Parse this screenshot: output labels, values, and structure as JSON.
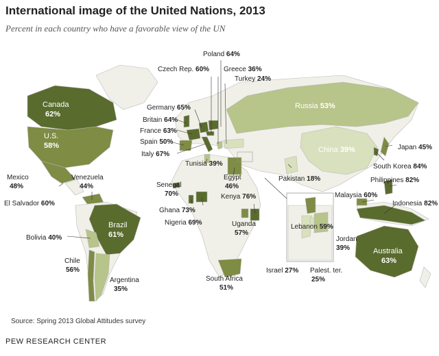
{
  "title": "International image of the United Nations, 2013",
  "subtitle": "Percent in each country who have a favorable view of the UN",
  "source": "Source: Spring 2013 Global Attitudes survey",
  "organization": "PEW RESEARCH CENTER",
  "colors": {
    "background_land": "#f0f0e8",
    "tier_high": "#5a6b2e",
    "tier_mid": "#7e8c44",
    "tier_low": "#b7c48a",
    "tier_lowest": "#d9e0bd",
    "ocean": "#ffffff"
  },
  "countries": [
    {
      "id": "canada",
      "name": "Canada",
      "pct": "62%",
      "value": 62
    },
    {
      "id": "us",
      "name": "U.S.",
      "pct": "58%",
      "value": 58
    },
    {
      "id": "mexico",
      "name": "Mexico",
      "pct": "48%",
      "value": 48
    },
    {
      "id": "el-salvador",
      "name": "El Salvador",
      "pct": "60%",
      "value": 60
    },
    {
      "id": "venezuela",
      "name": "Venezuela",
      "pct": "44%",
      "value": 44
    },
    {
      "id": "brazil",
      "name": "Brazil",
      "pct": "61%",
      "value": 61
    },
    {
      "id": "bolivia",
      "name": "Bolivia",
      "pct": "40%",
      "value": 40
    },
    {
      "id": "chile",
      "name": "Chile",
      "pct": "56%",
      "value": 56
    },
    {
      "id": "argentina",
      "name": "Argentina",
      "pct": "35%",
      "value": 35
    },
    {
      "id": "poland",
      "name": "Poland",
      "pct": "64%",
      "value": 64
    },
    {
      "id": "czech",
      "name": "Czech Rep.",
      "pct": "60%",
      "value": 60
    },
    {
      "id": "greece",
      "name": "Greece",
      "pct": "36%",
      "value": 36
    },
    {
      "id": "turkey",
      "name": "Turkey",
      "pct": "24%",
      "value": 24
    },
    {
      "id": "germany",
      "name": "Germany",
      "pct": "65%",
      "value": 65
    },
    {
      "id": "britain",
      "name": "Britain",
      "pct": "64%",
      "value": 64
    },
    {
      "id": "france",
      "name": "France",
      "pct": "63%",
      "value": 63
    },
    {
      "id": "spain",
      "name": "Spain",
      "pct": "50%",
      "value": 50
    },
    {
      "id": "italy",
      "name": "Italy",
      "pct": "67%",
      "value": 67
    },
    {
      "id": "russia",
      "name": "Russia",
      "pct": "53%",
      "value": 53
    },
    {
      "id": "china",
      "name": "China",
      "pct": "39%",
      "value": 39
    },
    {
      "id": "japan",
      "name": "Japan",
      "pct": "45%",
      "value": 45
    },
    {
      "id": "south-korea",
      "name": "South Korea",
      "pct": "84%",
      "value": 84
    },
    {
      "id": "philippines",
      "name": "Philippines",
      "pct": "82%",
      "value": 82
    },
    {
      "id": "malaysia",
      "name": "Malaysia",
      "pct": "60%",
      "value": 60
    },
    {
      "id": "indonesia",
      "name": "Indonesia",
      "pct": "82%",
      "value": 82
    },
    {
      "id": "australia",
      "name": "Australia",
      "pct": "63%",
      "value": 63
    },
    {
      "id": "tunisia",
      "name": "Tunisia",
      "pct": "39%",
      "value": 39
    },
    {
      "id": "egypt",
      "name": "Egypt",
      "pct": "46%",
      "value": 46
    },
    {
      "id": "pakistan",
      "name": "Pakistan",
      "pct": "18%",
      "value": 18
    },
    {
      "id": "senegal",
      "name": "Senegal",
      "pct": "70%",
      "value": 70
    },
    {
      "id": "ghana",
      "name": "Ghana",
      "pct": "73%",
      "value": 73
    },
    {
      "id": "nigeria",
      "name": "Nigeria",
      "pct": "69%",
      "value": 69
    },
    {
      "id": "kenya",
      "name": "Kenya",
      "pct": "76%",
      "value": 76
    },
    {
      "id": "uganda",
      "name": "Uganda",
      "pct": "57%",
      "value": 57
    },
    {
      "id": "south-africa",
      "name": "South Africa",
      "pct": "51%",
      "value": 51
    },
    {
      "id": "lebanon",
      "name": "Lebanon",
      "pct": "59%",
      "value": 59
    },
    {
      "id": "jordan",
      "name": "Jordan",
      "pct": "39%",
      "value": 39
    },
    {
      "id": "israel",
      "name": "Israel",
      "pct": "27%",
      "value": 27
    },
    {
      "id": "palestinian-ter",
      "name": "Palest. ter.",
      "pct": "25%",
      "value": 25
    }
  ]
}
